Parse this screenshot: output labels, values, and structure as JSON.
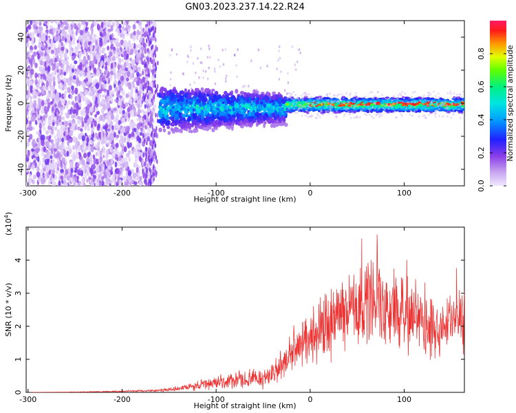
{
  "figure_title": "GN03.2023.237.14.22.R24",
  "colorbar": {
    "label": "Normalized spectral amplitude",
    "ticks": [
      "0.0",
      "0.2",
      "0.4",
      "0.6",
      "0.8"
    ],
    "tick_values": [
      0.0,
      0.2,
      0.4,
      0.6,
      0.8
    ],
    "range": [
      0,
      1
    ]
  },
  "chart_data": [
    {
      "type": "heatmap",
      "xlabel": "Height of straight line (km)",
      "ylabel": "Frequency (Hz)",
      "xlim": [
        -302,
        164
      ],
      "ylim": [
        -50,
        50
      ],
      "x_ticks": [
        -300,
        -200,
        -100,
        0,
        100
      ],
      "y_ticks": [
        -40,
        -20,
        0,
        20,
        40
      ],
      "regions": [
        {
          "x_range": [
            -300,
            -165
          ],
          "description_value": "broadband noise, amplitude ~0.05-0.2"
        },
        {
          "x_range": [
            -160,
            -30
          ],
          "freq_center": -5,
          "freq_halfwidth": 12,
          "amplitude": [
            0.2,
            0.45
          ]
        },
        {
          "x_range": [
            -25,
            164
          ],
          "freq_center": -1,
          "freq_halfwidth": 5,
          "amplitude": [
            0.4,
            1.0
          ]
        }
      ]
    },
    {
      "type": "line",
      "xlabel": "Height of straight line (km)",
      "ylabel": "SNR (10 * v/v)",
      "y_multiplier_label": "(x10",
      "y_multiplier_exp": "4",
      "y_multiplier_close": ")",
      "xlim": [
        -302,
        164
      ],
      "ylim": [
        0,
        5
      ],
      "x_ticks": [
        -300,
        -200,
        -100,
        0,
        100
      ],
      "y_ticks": [
        0,
        1,
        2,
        3,
        4
      ],
      "color": "#ee3333",
      "series": [
        {
          "x": [
            -300,
            -250,
            -200,
            -170,
            -150,
            -130,
            -110,
            -100,
            -80,
            -60,
            -50,
            -40,
            -30,
            -20,
            -10,
            0,
            10,
            20,
            30,
            40,
            50,
            60,
            70,
            80,
            90,
            100,
            110,
            120,
            130,
            140,
            150,
            160
          ],
          "y": [
            0.0,
            0.01,
            0.03,
            0.05,
            0.08,
            0.15,
            0.25,
            0.3,
            0.35,
            0.4,
            0.45,
            0.5,
            0.8,
            1.2,
            1.5,
            1.7,
            1.9,
            2.1,
            2.3,
            2.5,
            2.6,
            2.8,
            2.9,
            2.6,
            2.4,
            2.3,
            2.2,
            2.1,
            2.0,
            2.0,
            2.1,
            2.2
          ]
        }
      ]
    }
  ]
}
